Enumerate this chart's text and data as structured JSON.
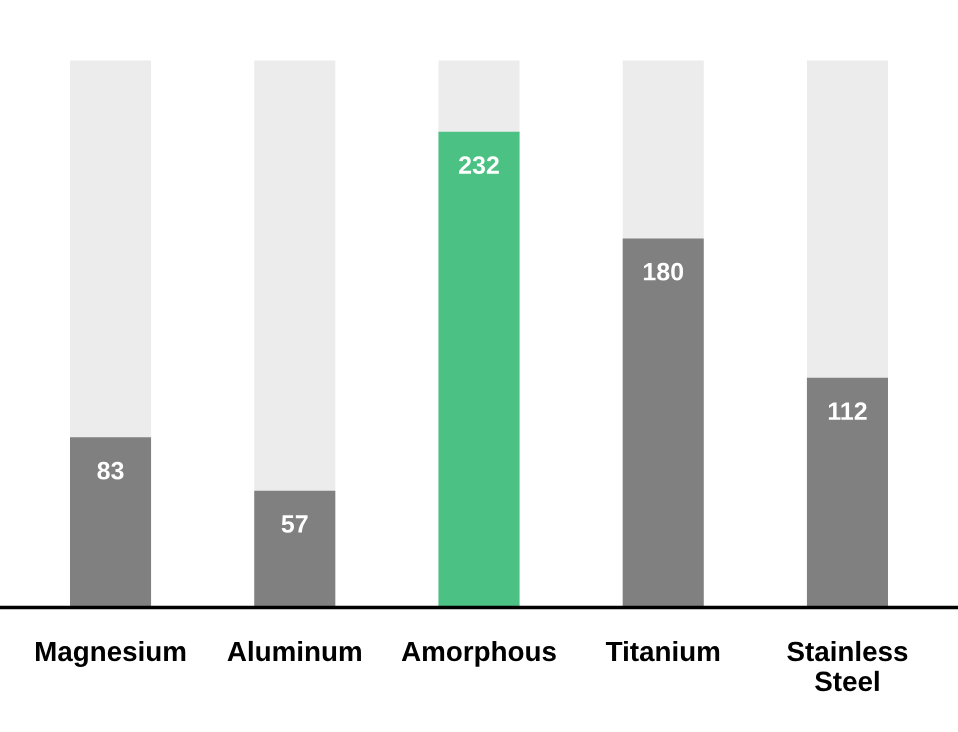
{
  "chart_data": {
    "type": "bar",
    "categories": [
      "Magnesium",
      "Aluminum",
      "Amorphous",
      "Titanium",
      "Stainless\nSteel"
    ],
    "values": [
      83,
      57,
      232,
      180,
      112
    ],
    "colors": [
      "#808080",
      "#808080",
      "#4cc184",
      "#808080",
      "#808080"
    ],
    "data_labels": true,
    "grid": false,
    "legend": false
  }
}
